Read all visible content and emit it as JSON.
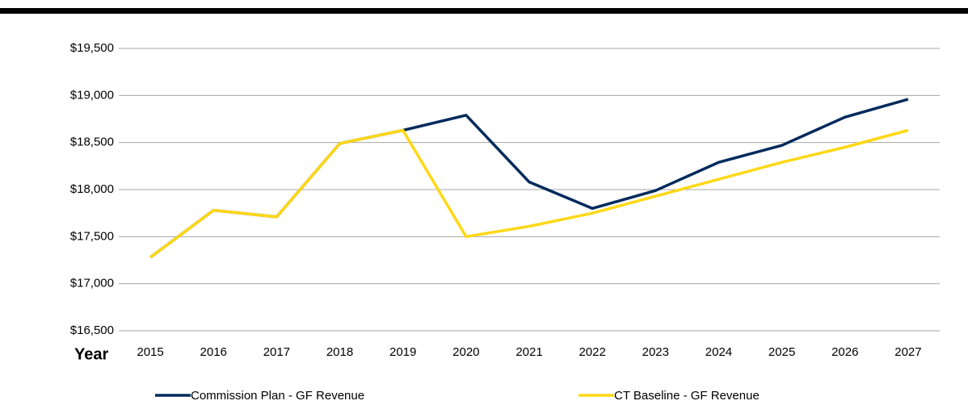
{
  "chart_data": {
    "type": "line",
    "x_label": "Year",
    "categories": [
      "2015",
      "2016",
      "2017",
      "2018",
      "2019",
      "2020",
      "2021",
      "2022",
      "2023",
      "2024",
      "2025",
      "2026",
      "2027"
    ],
    "series": [
      {
        "name": "Commission Plan - GF Revenue",
        "color": "#002a5c",
        "values": [
          17280,
          17780,
          17710,
          18490,
          18630,
          18790,
          18080,
          17800,
          17990,
          18290,
          18470,
          18770,
          18960
        ]
      },
      {
        "name": "CT Baseline - GF Revenue",
        "color": "#ffd814",
        "values": [
          17280,
          17780,
          17710,
          18490,
          18630,
          17500,
          17610,
          17750,
          17930,
          18110,
          18290,
          18450,
          18630
        ]
      }
    ],
    "ylim": [
      16500,
      19500
    ],
    "yticks": [
      {
        "value": 16500,
        "label": "$16,500"
      },
      {
        "value": 17000,
        "label": "$17,000"
      },
      {
        "value": 17500,
        "label": "$17,500"
      },
      {
        "value": 18000,
        "label": "$18,000"
      },
      {
        "value": 18500,
        "label": "$18,500"
      },
      {
        "value": 19000,
        "label": "$19,000"
      },
      {
        "value": 19500,
        "label": "$19,500"
      }
    ],
    "grid": true,
    "legend": "bottom"
  }
}
